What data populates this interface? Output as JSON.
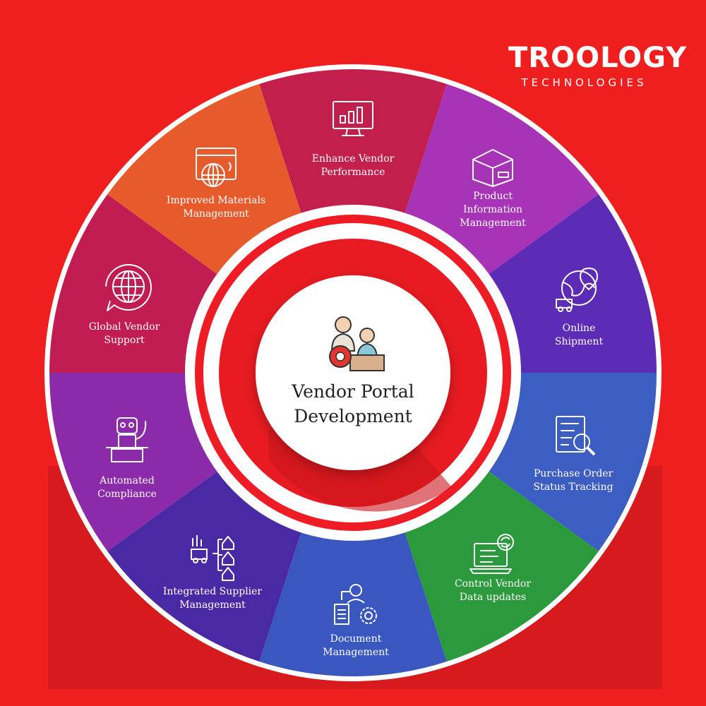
{
  "brand": {
    "name": "TROOLOGY",
    "tagline": "TECHNOLOGIES"
  },
  "center": {
    "title_line1": "Vendor Portal",
    "title_line2": "Development",
    "icon": "vendor-meeting-icon"
  },
  "segments": [
    {
      "line1": "Enhance Vendor",
      "line2": "Performance",
      "icon": "monitor-chart-icon",
      "color": "#c21f4d"
    },
    {
      "line1": "Product",
      "line2": "Information",
      "line3": "Management",
      "icon": "box-package-icon",
      "color": "#a733b6"
    },
    {
      "line1": "Online",
      "line2": "Shipment",
      "icon": "globe-truck-icon",
      "color": "#5d2cb6"
    },
    {
      "line1": "Purchase Order",
      "line2": "Status Tracking",
      "icon": "order-search-icon",
      "color": "#3c5dc2"
    },
    {
      "line1": "Control Vendor",
      "line2": "Data updates",
      "icon": "laptop-sync-icon",
      "color": "#2b9a3c"
    },
    {
      "line1": "Document",
      "line2": "Management",
      "icon": "document-gear-icon",
      "color": "#3a57c0"
    },
    {
      "line1": "Integrated Supplier",
      "line2": "Management",
      "icon": "warehouse-network-icon",
      "color": "#4a2aa4"
    },
    {
      "line1": "Automated",
      "line2": "Compliance",
      "icon": "robot-computer-icon",
      "color": "#8c2ba9"
    },
    {
      "line1": "Global Vendor",
      "line2": "Support",
      "icon": "globe-chat-icon",
      "color": "#c21d52"
    },
    {
      "line1": "Improved Materials",
      "line2": "Management",
      "icon": "browser-globe-icon",
      "color": "#e75a2b"
    }
  ],
  "colors": {
    "background": "#f01f1f",
    "ring_red": "#ee1c25",
    "ring_white": "#ffffff",
    "icon_stroke": "#ffffff"
  }
}
